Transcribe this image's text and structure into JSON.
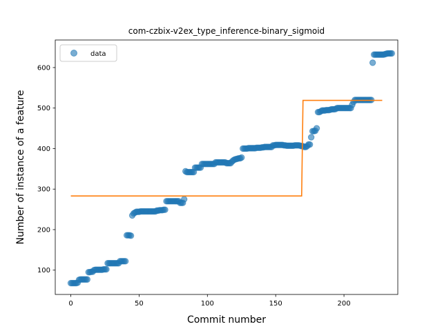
{
  "chart_data": {
    "type": "scatter",
    "title": "com-czbix-v2ex_type_inference-binary_sigmoid",
    "xlabel": "Commit number",
    "ylabel": "Number of instance of a feature",
    "xlim": [
      -11.4,
      239.4
    ],
    "ylim": [
      40,
      668
    ],
    "xticks": [
      0,
      50,
      100,
      150,
      200
    ],
    "yticks": [
      100,
      200,
      300,
      400,
      500,
      600
    ],
    "legend": {
      "placement": "top-left",
      "entries": [
        "data"
      ]
    },
    "grid": false,
    "colors": {
      "data": "#1f77b4",
      "fit": "#ff7f0e"
    },
    "series": [
      {
        "name": "data",
        "kind": "scatter",
        "points": [
          [
            0,
            68
          ],
          [
            1,
            68
          ],
          [
            2,
            68
          ],
          [
            3,
            68
          ],
          [
            4,
            68
          ],
          [
            5,
            69
          ],
          [
            6,
            76
          ],
          [
            7,
            77
          ],
          [
            8,
            77
          ],
          [
            9,
            77
          ],
          [
            10,
            77
          ],
          [
            11,
            77
          ],
          [
            12,
            77
          ],
          [
            13,
            95
          ],
          [
            14,
            95
          ],
          [
            15,
            96
          ],
          [
            16,
            96
          ],
          [
            17,
            100
          ],
          [
            18,
            101
          ],
          [
            19,
            101
          ],
          [
            20,
            101
          ],
          [
            21,
            101
          ],
          [
            22,
            101
          ],
          [
            23,
            101
          ],
          [
            24,
            102
          ],
          [
            25,
            102
          ],
          [
            26,
            102
          ],
          [
            27,
            117
          ],
          [
            28,
            117
          ],
          [
            29,
            117
          ],
          [
            30,
            117
          ],
          [
            31,
            117
          ],
          [
            32,
            117
          ],
          [
            33,
            117
          ],
          [
            34,
            117
          ],
          [
            35,
            117
          ],
          [
            36,
            122
          ],
          [
            37,
            122
          ],
          [
            38,
            122
          ],
          [
            39,
            122
          ],
          [
            40,
            122
          ],
          [
            41,
            186
          ],
          [
            42,
            186
          ],
          [
            43,
            186
          ],
          [
            44,
            185
          ],
          [
            45,
            235
          ],
          [
            46,
            240
          ],
          [
            47,
            242
          ],
          [
            48,
            244
          ],
          [
            49,
            244
          ],
          [
            50,
            244
          ],
          [
            51,
            245
          ],
          [
            52,
            245
          ],
          [
            53,
            245
          ],
          [
            54,
            245
          ],
          [
            55,
            245
          ],
          [
            56,
            245
          ],
          [
            57,
            245
          ],
          [
            58,
            245
          ],
          [
            59,
            245
          ],
          [
            60,
            245
          ],
          [
            61,
            245
          ],
          [
            62,
            245
          ],
          [
            63,
            247
          ],
          [
            64,
            247
          ],
          [
            65,
            248
          ],
          [
            66,
            248
          ],
          [
            67,
            248
          ],
          [
            68,
            249
          ],
          [
            69,
            249
          ],
          [
            70,
            270
          ],
          [
            71,
            270
          ],
          [
            72,
            270
          ],
          [
            73,
            270
          ],
          [
            74,
            270
          ],
          [
            75,
            270
          ],
          [
            76,
            270
          ],
          [
            77,
            270
          ],
          [
            78,
            270
          ],
          [
            79,
            270
          ],
          [
            80,
            266
          ],
          [
            81,
            266
          ],
          [
            82,
            266
          ],
          [
            83,
            275
          ],
          [
            84,
            344
          ],
          [
            85,
            342
          ],
          [
            86,
            342
          ],
          [
            87,
            342
          ],
          [
            88,
            342
          ],
          [
            89,
            342
          ],
          [
            90,
            342
          ],
          [
            91,
            353
          ],
          [
            92,
            353
          ],
          [
            93,
            353
          ],
          [
            94,
            353
          ],
          [
            95,
            353
          ],
          [
            96,
            362
          ],
          [
            97,
            362
          ],
          [
            98,
            362
          ],
          [
            99,
            362
          ],
          [
            100,
            362
          ],
          [
            101,
            362
          ],
          [
            102,
            362
          ],
          [
            103,
            362
          ],
          [
            104,
            362
          ],
          [
            105,
            362
          ],
          [
            106,
            366
          ],
          [
            107,
            366
          ],
          [
            108,
            366
          ],
          [
            109,
            366
          ],
          [
            110,
            366
          ],
          [
            111,
            366
          ],
          [
            112,
            366
          ],
          [
            113,
            366
          ],
          [
            114,
            364
          ],
          [
            115,
            364
          ],
          [
            116,
            364
          ],
          [
            117,
            364
          ],
          [
            118,
            368
          ],
          [
            119,
            371
          ],
          [
            120,
            373
          ],
          [
            121,
            374
          ],
          [
            122,
            375
          ],
          [
            123,
            376
          ],
          [
            124,
            376
          ],
          [
            125,
            378
          ],
          [
            126,
            400
          ],
          [
            127,
            400
          ],
          [
            128,
            400
          ],
          [
            129,
            400
          ],
          [
            130,
            401
          ],
          [
            131,
            401
          ],
          [
            132,
            401
          ],
          [
            133,
            401
          ],
          [
            134,
            401
          ],
          [
            135,
            401
          ],
          [
            136,
            402
          ],
          [
            137,
            402
          ],
          [
            138,
            402
          ],
          [
            139,
            402
          ],
          [
            140,
            403
          ],
          [
            141,
            403
          ],
          [
            142,
            404
          ],
          [
            143,
            404
          ],
          [
            144,
            404
          ],
          [
            145,
            404
          ],
          [
            146,
            404
          ],
          [
            147,
            404
          ],
          [
            148,
            408
          ],
          [
            149,
            408
          ],
          [
            150,
            409
          ],
          [
            151,
            409
          ],
          [
            152,
            409
          ],
          [
            153,
            409
          ],
          [
            154,
            409
          ],
          [
            155,
            409
          ],
          [
            156,
            408
          ],
          [
            157,
            408
          ],
          [
            158,
            407
          ],
          [
            159,
            407
          ],
          [
            160,
            407
          ],
          [
            161,
            407
          ],
          [
            162,
            407
          ],
          [
            163,
            407
          ],
          [
            164,
            408
          ],
          [
            165,
            408
          ],
          [
            166,
            408
          ],
          [
            167,
            408
          ],
          [
            168,
            407
          ],
          [
            169,
            406
          ],
          [
            170,
            406
          ],
          [
            171,
            404
          ],
          [
            172,
            404
          ],
          [
            173,
            406
          ],
          [
            174,
            410
          ],
          [
            175,
            410
          ],
          [
            176,
            428
          ],
          [
            177,
            443
          ],
          [
            178,
            443
          ],
          [
            179,
            444
          ],
          [
            180,
            450
          ],
          [
            181,
            490
          ],
          [
            182,
            490
          ],
          [
            183,
            492
          ],
          [
            184,
            494
          ],
          [
            185,
            494
          ],
          [
            186,
            494
          ],
          [
            187,
            495
          ],
          [
            188,
            495
          ],
          [
            189,
            495
          ],
          [
            190,
            496
          ],
          [
            191,
            497
          ],
          [
            192,
            497
          ],
          [
            193,
            497
          ],
          [
            194,
            498
          ],
          [
            195,
            500
          ],
          [
            196,
            500
          ],
          [
            197,
            500
          ],
          [
            198,
            500
          ],
          [
            199,
            500
          ],
          [
            200,
            500
          ],
          [
            201,
            500
          ],
          [
            202,
            500
          ],
          [
            203,
            500
          ],
          [
            204,
            500
          ],
          [
            205,
            500
          ],
          [
            206,
            508
          ],
          [
            207,
            515
          ],
          [
            208,
            520
          ],
          [
            209,
            520
          ],
          [
            210,
            520
          ],
          [
            211,
            520
          ],
          [
            212,
            520
          ],
          [
            213,
            520
          ],
          [
            214,
            520
          ],
          [
            215,
            520
          ],
          [
            216,
            520
          ],
          [
            217,
            520
          ],
          [
            218,
            520
          ],
          [
            219,
            520
          ],
          [
            220,
            520
          ],
          [
            221,
            612
          ],
          [
            222,
            632
          ],
          [
            223,
            632
          ],
          [
            224,
            632
          ],
          [
            225,
            632
          ],
          [
            226,
            632
          ],
          [
            227,
            632
          ],
          [
            228,
            632
          ],
          [
            229,
            632
          ],
          [
            230,
            633
          ],
          [
            231,
            634
          ],
          [
            232,
            635
          ],
          [
            233,
            635
          ],
          [
            234,
            635
          ],
          [
            235,
            635
          ]
        ]
      },
      {
        "kind": "line",
        "points": [
          [
            0,
            283
          ],
          [
            169,
            283
          ],
          [
            170,
            519
          ],
          [
            228,
            519
          ]
        ]
      }
    ]
  }
}
